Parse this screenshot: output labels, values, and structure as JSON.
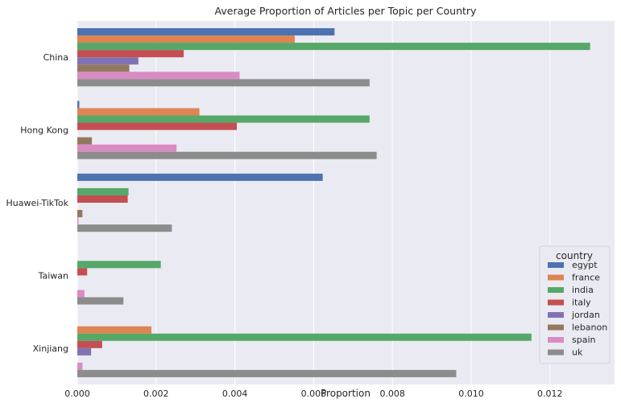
{
  "chart_data": {
    "type": "bar",
    "orientation": "horizontal",
    "title": "Average Proportion of Articles per Topic per Country",
    "xlabel": "Proportion",
    "ylabel": "",
    "xlim": [
      0,
      0.0137
    ],
    "x_ticks": [
      "0.000",
      "0.002",
      "0.004",
      "0.006",
      "0.008",
      "0.010",
      "0.012"
    ],
    "x_tick_values": [
      0,
      0.002,
      0.004,
      0.006,
      0.008,
      0.01,
      0.012
    ],
    "grid": true,
    "legend_title": "country",
    "legend_position": "bottom-right",
    "categories": [
      "China",
      "Hong Kong",
      "Huawei-TikTok",
      "Taiwan",
      "Xinjiang"
    ],
    "series": [
      {
        "name": "egypt",
        "color": "#4c72b0",
        "values": [
          0.00653,
          5e-05,
          0.00623,
          0,
          0
        ]
      },
      {
        "name": "france",
        "color": "#dd8452",
        "values": [
          0.00552,
          0.0031,
          0,
          0,
          0.00188
        ]
      },
      {
        "name": "india",
        "color": "#55a868",
        "values": [
          0.01302,
          0.00742,
          0.0013,
          0.00212,
          0.01153
        ]
      },
      {
        "name": "italy",
        "color": "#c44e52",
        "values": [
          0.0027,
          0.00405,
          0.00128,
          0.00025,
          0.00063
        ]
      },
      {
        "name": "jordan",
        "color": "#8172b3",
        "values": [
          0.00155,
          0,
          0,
          0,
          0.00035
        ]
      },
      {
        "name": "lebanon",
        "color": "#937860",
        "values": [
          0.00132,
          0.00037,
          0.00013,
          0,
          0
        ]
      },
      {
        "name": "spain",
        "color": "#da8bc3",
        "values": [
          0.00412,
          0.00252,
          3e-05,
          0.00018,
          0.00013
        ]
      },
      {
        "name": "uk",
        "color": "#8c8c8c",
        "values": [
          0.00742,
          0.0076,
          0.0024,
          0.00117,
          0.00962
        ]
      }
    ]
  }
}
